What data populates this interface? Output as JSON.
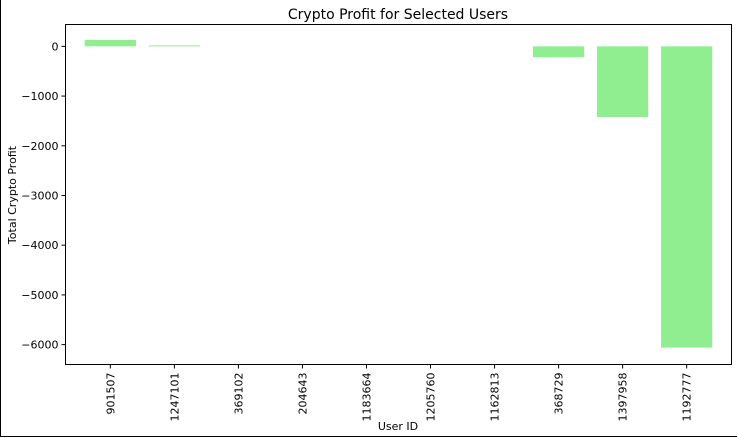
{
  "chart_data": {
    "type": "bar",
    "title": "Crypto Profit for Selected Users",
    "xlabel": "User ID",
    "ylabel": "Total Crypto Profit",
    "categories": [
      "901507",
      "1247101",
      "369102",
      "204643",
      "1183664",
      "1205760",
      "1162813",
      "368729",
      "1397958",
      "1192777"
    ],
    "values": [
      130,
      20,
      0,
      0,
      0,
      0,
      0,
      -220,
      -1420,
      -6060
    ],
    "ylim": [
      -6400,
      440
    ],
    "yticks": [
      0,
      -1000,
      -2000,
      -3000,
      -4000,
      -5000,
      -6000
    ],
    "ytick_labels": [
      "0",
      "−1000",
      "−2000",
      "−3000",
      "−4000",
      "−5000",
      "−6000"
    ],
    "bar_color": "#90ee90",
    "grid": false,
    "legend": "none"
  }
}
